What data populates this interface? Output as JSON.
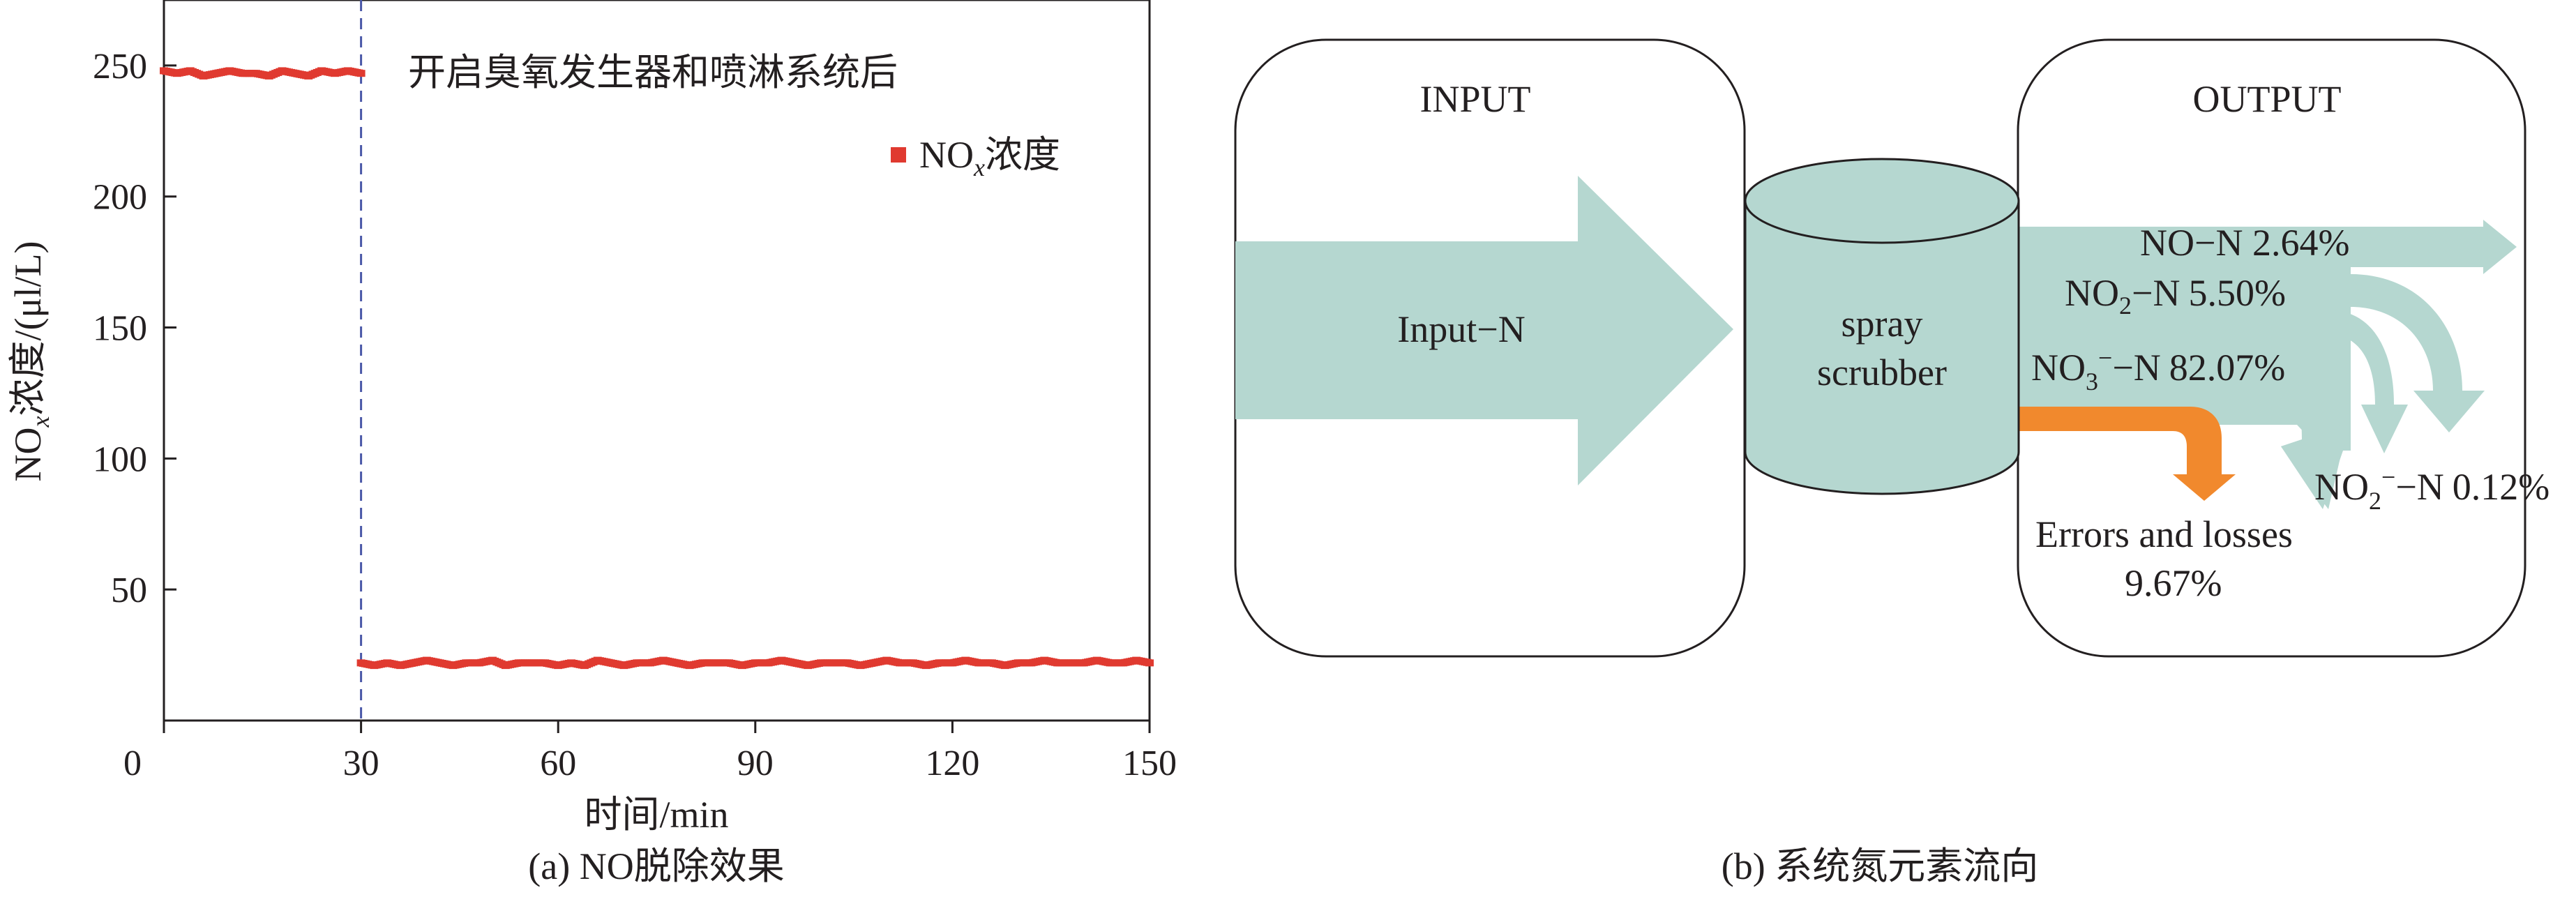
{
  "chart_data": [
    {
      "type": "scatter",
      "panel_caption": "(a) NO脱除效果",
      "xlabel": "时间/min",
      "ylabel": "NOx浓度/(μl/L)",
      "xlim": [
        0,
        150
      ],
      "ylim": [
        0,
        275
      ],
      "xticks": [
        "0",
        "30",
        "60",
        "90",
        "120",
        "150"
      ],
      "yticks": [
        "50",
        "100",
        "150",
        "200",
        "250"
      ],
      "annotation": "开启臭氧发生器和喷淋系统后",
      "event_x": 30,
      "series": [
        {
          "name": "NOx浓度",
          "color": "#e03a30",
          "x": [
            0,
            2,
            4,
            6,
            8,
            10,
            12,
            14,
            16,
            18,
            20,
            22,
            24,
            26,
            28,
            30,
            30,
            32,
            34,
            36,
            38,
            40,
            42,
            44,
            46,
            48,
            50,
            52,
            54,
            56,
            58,
            60,
            62,
            64,
            66,
            68,
            70,
            72,
            74,
            76,
            78,
            80,
            82,
            84,
            86,
            88,
            90,
            92,
            94,
            96,
            98,
            100,
            102,
            104,
            106,
            108,
            110,
            112,
            114,
            116,
            118,
            120,
            122,
            124,
            126,
            128,
            130,
            132,
            134,
            136,
            138,
            140,
            142,
            144,
            146,
            148,
            150
          ],
          "y": [
            248,
            247,
            248,
            246,
            247,
            248,
            247,
            247,
            246,
            248,
            247,
            246,
            248,
            247,
            248,
            247,
            22,
            21,
            22,
            21,
            22,
            23,
            22,
            21,
            22,
            22,
            23,
            21,
            22,
            22,
            22,
            21,
            22,
            21,
            23,
            22,
            21,
            22,
            22,
            23,
            22,
            21,
            22,
            22,
            22,
            21,
            22,
            22,
            23,
            22,
            21,
            22,
            22,
            22,
            21,
            22,
            23,
            22,
            22,
            21,
            22,
            22,
            23,
            22,
            22,
            21,
            22,
            22,
            23,
            22,
            22,
            22,
            23,
            22,
            22,
            23,
            22
          ]
        }
      ]
    },
    {
      "type": "sankey",
      "panel_caption": "(b) 系统氮元素流向",
      "input_title": "INPUT",
      "output_title": "OUTPUT",
      "input_label": "Input−N",
      "scrubber_label_1": "spray",
      "scrubber_label_2": "scrubber",
      "flows": [
        {
          "name": "NO−N",
          "value": "2.64%"
        },
        {
          "name_main": "NO",
          "name_sub": "2",
          "name_rest": "−N",
          "value": "5.50%"
        },
        {
          "name_main": "NO",
          "name_sub": "3",
          "name_sup": "−",
          "name_rest": "−N",
          "value": "82.07%"
        },
        {
          "name_main": "NO",
          "name_sub": "2",
          "name_sup": "−",
          "name_rest": "−N",
          "value": "0.12%"
        },
        {
          "name": "Errors and losses",
          "value": "9.67%"
        }
      ],
      "colors": {
        "flow": "#b5d7d0",
        "loss": "#f1892d",
        "scrubber": "#b5d7d0",
        "stroke": "#231f20",
        "axis": "#231f20",
        "event_line": "#4a58a8"
      }
    }
  ]
}
